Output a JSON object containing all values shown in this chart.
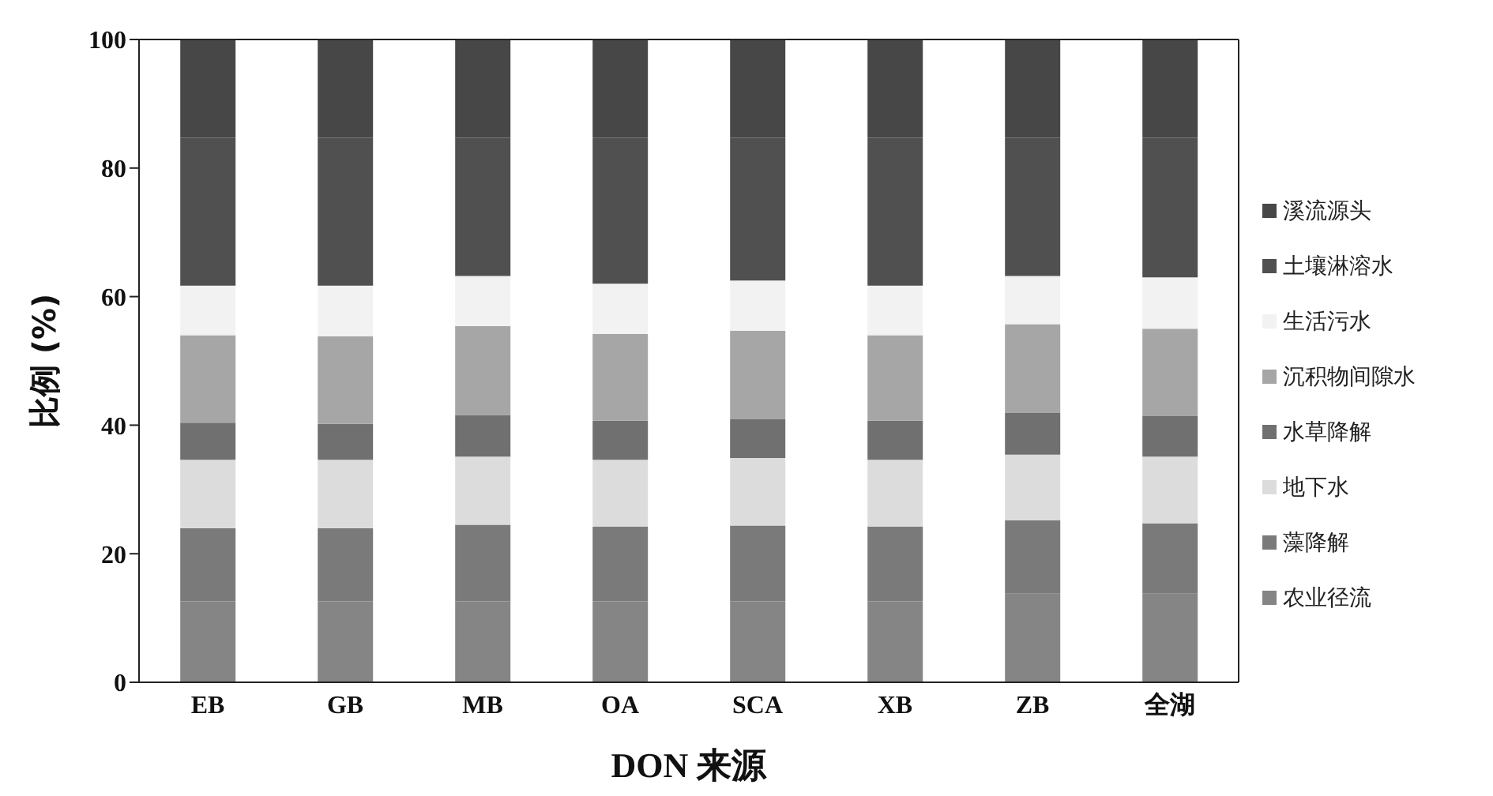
{
  "chart_data": {
    "type": "bar",
    "stacked": true,
    "xlabel": "DON 来源",
    "ylabel": "比例 (%)",
    "categories": [
      "EB",
      "GB",
      "MB",
      "OA",
      "SCA",
      "XB",
      "ZB",
      "全湖"
    ],
    "ylim": [
      0,
      100
    ],
    "yticks": [
      0,
      20,
      40,
      60,
      80,
      100
    ],
    "legend": "right",
    "grid": false,
    "series": [
      {
        "name": "农业径流",
        "color": "#858585",
        "values": [
          12.6,
          12.6,
          12.6,
          12.6,
          12.6,
          12.6,
          13.8,
          13.8
        ]
      },
      {
        "name": "藻降解",
        "color": "#7a7a7a",
        "values": [
          11.4,
          11.4,
          11.9,
          11.6,
          11.8,
          11.6,
          11.4,
          10.9
        ]
      },
      {
        "name": "地下水",
        "color": "#dcdcdc",
        "values": [
          10.6,
          10.6,
          10.6,
          10.4,
          10.5,
          10.4,
          10.2,
          10.4
        ]
      },
      {
        "name": "水草降解",
        "color": "#707070",
        "values": [
          5.8,
          5.6,
          6.5,
          6.1,
          6.0,
          6.1,
          6.5,
          6.3
        ]
      },
      {
        "name": "沉积物间隙水",
        "color": "#a6a6a6",
        "values": [
          13.6,
          13.6,
          13.8,
          13.5,
          13.8,
          13.3,
          13.8,
          13.6
        ]
      },
      {
        "name": "生活污水",
        "color": "#f2f2f2",
        "values": [
          7.7,
          7.9,
          7.8,
          7.8,
          7.8,
          7.7,
          7.5,
          8.0
        ]
      },
      {
        "name": "土壤淋溶水",
        "color": "#505050",
        "values": [
          23.0,
          23.0,
          21.5,
          22.7,
          22.2,
          23.0,
          21.5,
          21.7
        ]
      },
      {
        "name": "溪流源头",
        "color": "#474747",
        "values": [
          15.3,
          15.3,
          15.3,
          15.3,
          15.3,
          15.3,
          15.3,
          15.3
        ]
      }
    ]
  }
}
